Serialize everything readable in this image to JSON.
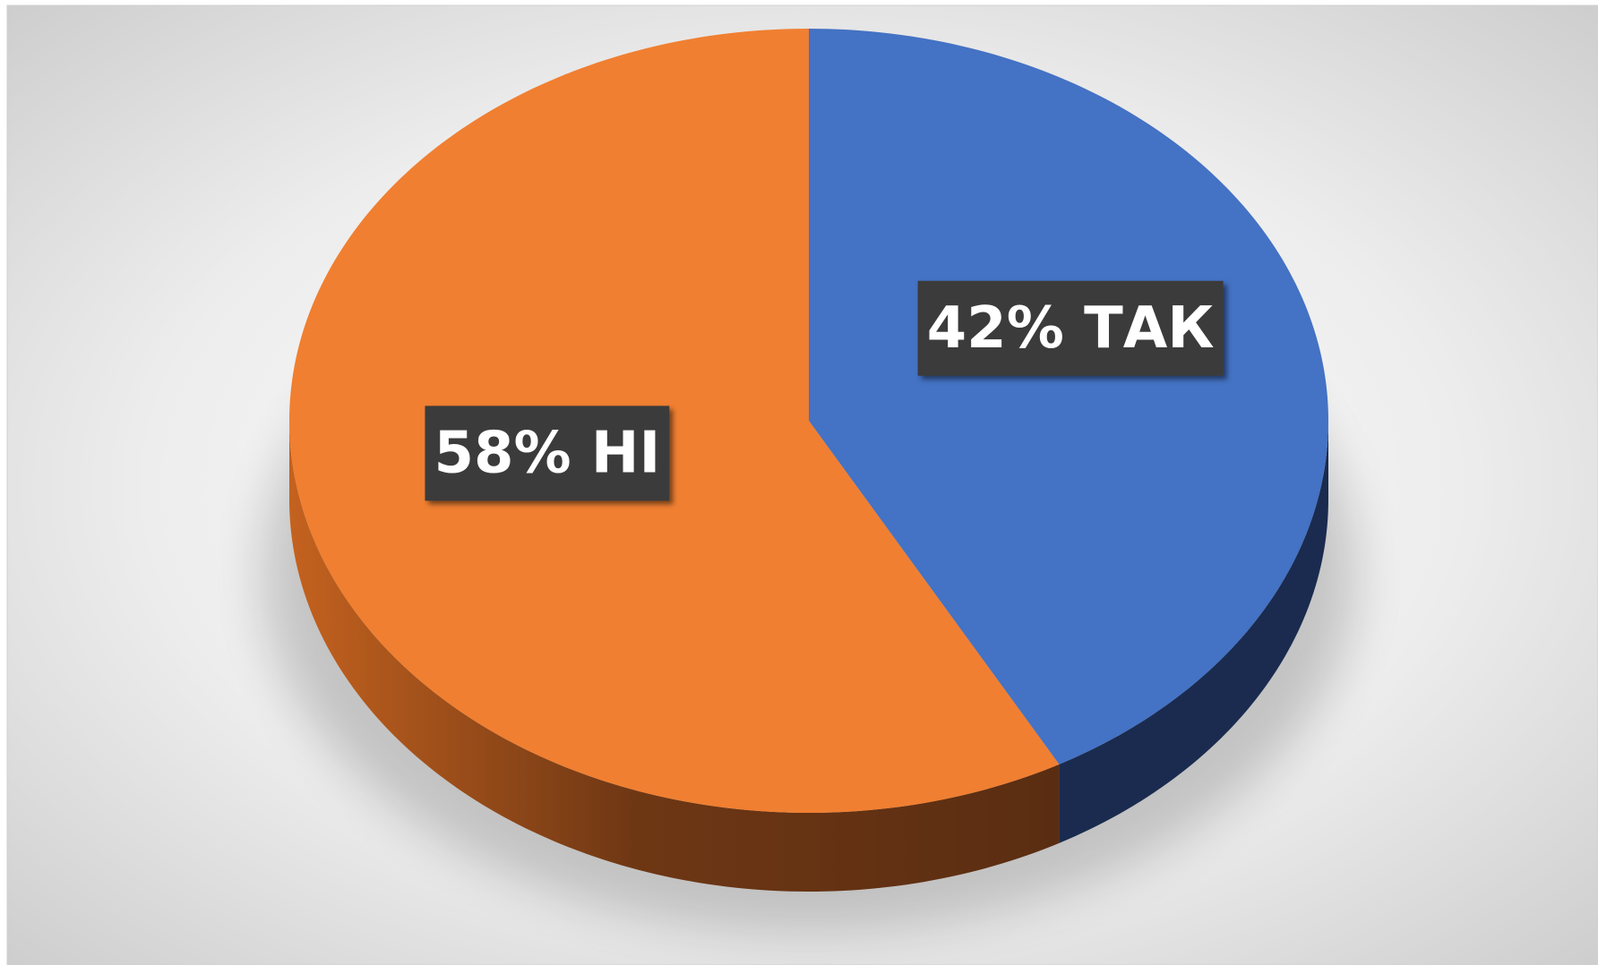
{
  "chart_data": {
    "type": "pie",
    "values": [
      42,
      58
    ],
    "value_labels": [
      "42% ТАК",
      "58% НІ"
    ],
    "colors": [
      "#4472c4",
      "#f07f31"
    ],
    "side_colors": [
      "#1a2b4f",
      "#7a3c14"
    ]
  }
}
